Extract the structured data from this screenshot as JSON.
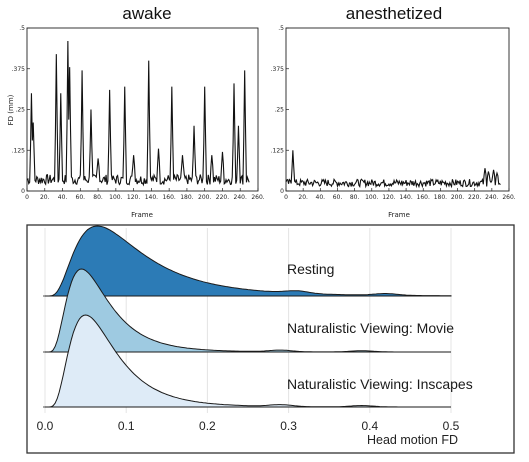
{
  "chart_data": [
    {
      "type": "line",
      "title": "awake",
      "xlabel": "Frame",
      "ylabel": "FD (mm)",
      "xlim": [
        0,
        260
      ],
      "ylim": [
        0,
        0.5
      ],
      "x_ticks": [
        "0",
        "20.",
        "40.",
        "60.",
        "80.",
        "100.",
        "120.",
        "140.",
        "160.",
        "180.",
        "200.",
        "220.",
        "240.",
        "260."
      ],
      "y_ticks": [
        "0",
        ".125",
        ".25",
        ".375",
        ".5"
      ],
      "peaks": [
        {
          "x": 5,
          "y": 0.3
        },
        {
          "x": 7,
          "y": 0.21
        },
        {
          "x": 33,
          "y": 0.42
        },
        {
          "x": 38,
          "y": 0.3
        },
        {
          "x": 46,
          "y": 0.46
        },
        {
          "x": 48,
          "y": 0.38
        },
        {
          "x": 62,
          "y": 0.37
        },
        {
          "x": 72,
          "y": 0.25
        },
        {
          "x": 80,
          "y": 0.1
        },
        {
          "x": 93,
          "y": 0.31
        },
        {
          "x": 110,
          "y": 0.32
        },
        {
          "x": 120,
          "y": 0.11
        },
        {
          "x": 137,
          "y": 0.4
        },
        {
          "x": 148,
          "y": 0.13
        },
        {
          "x": 163,
          "y": 0.32
        },
        {
          "x": 175,
          "y": 0.11
        },
        {
          "x": 188,
          "y": 0.2
        },
        {
          "x": 200,
          "y": 0.32
        },
        {
          "x": 208,
          "y": 0.11
        },
        {
          "x": 220,
          "y": 0.12
        },
        {
          "x": 233,
          "y": 0.33
        },
        {
          "x": 238,
          "y": 0.2
        },
        {
          "x": 245,
          "y": 0.37
        }
      ],
      "baseline": 0.035
    },
    {
      "type": "line",
      "title": "anesthetized",
      "xlabel": "Frame",
      "ylabel": "",
      "xlim": [
        0,
        260
      ],
      "ylim": [
        0,
        0.5
      ],
      "x_ticks": [
        "0",
        "20.",
        "40.",
        "60.",
        "80.",
        "100.",
        "120.",
        "140.",
        "160.",
        "180.",
        "200.",
        "220.",
        "240.",
        "260."
      ],
      "y_ticks": [
        "0",
        ".125",
        ".25",
        ".375",
        ".5"
      ],
      "peaks": [
        {
          "x": 8,
          "y": 0.125
        },
        {
          "x": 232,
          "y": 0.07
        },
        {
          "x": 236,
          "y": 0.06
        },
        {
          "x": 242,
          "y": 0.065
        },
        {
          "x": 246,
          "y": 0.055
        }
      ],
      "baseline": 0.025
    },
    {
      "type": "area",
      "subtype": "ridgeline-density",
      "xlabel": "Head motion  FD",
      "xlim": [
        0,
        0.5
      ],
      "x_ticks": [
        "0.0",
        "0.1",
        "0.2",
        "0.3",
        "0.4",
        "0.5"
      ],
      "series": [
        {
          "name": "Resting",
          "mode": 0.07,
          "peak_density": 1.0,
          "tail": "heavy",
          "color": "#2c7bb6"
        },
        {
          "name": "Naturalistic Viewing: Movie",
          "mode": 0.045,
          "peak_density": 1.0,
          "tail": "medium",
          "color": "#9ecae1"
        },
        {
          "name": "Naturalistic Viewing: Inscapes",
          "mode": 0.05,
          "peak_density": 1.0,
          "tail": "medium",
          "color": "#deebf7"
        }
      ],
      "grid": true
    }
  ]
}
